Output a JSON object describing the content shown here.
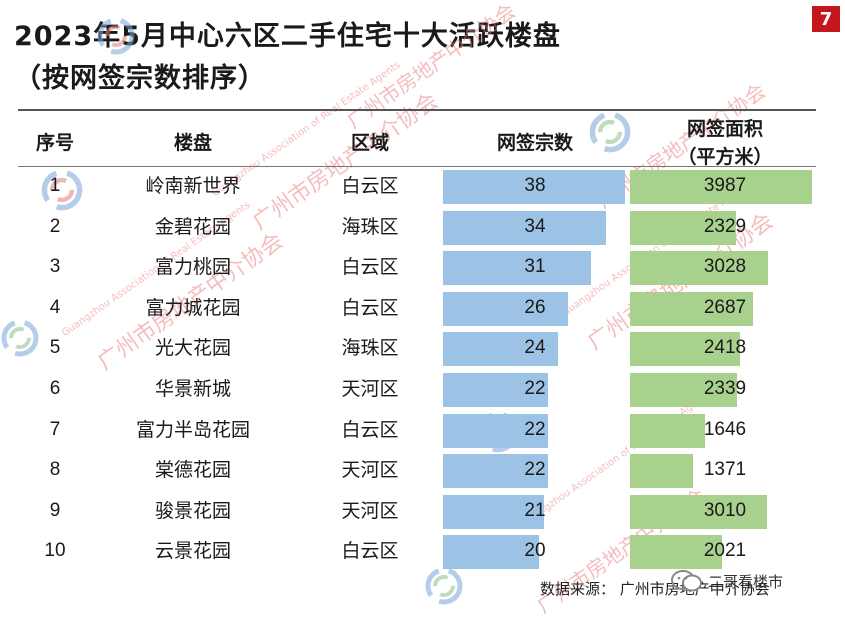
{
  "page": {
    "title_line1": "2023年5月中心六区二手住宅十大活跃楼盘",
    "title_line2": "（按网签宗数排序）",
    "page_number": "7",
    "source": "数据来源：  广州市房地产中介协会",
    "watermark_cn": "广州市房地产中介协会",
    "watermark_en": "Guangzhou Association of Real Estate Agents",
    "brand": "二哥看楼市"
  },
  "chart_data": {
    "type": "table",
    "headers": {
      "rank": "序号",
      "project": "楼盘",
      "district": "区域",
      "deals": "网签宗数",
      "area_line1": "网签面积",
      "area_line2": "（平方米）"
    },
    "rows": [
      {
        "rank": "1",
        "project": "岭南新世界",
        "district": "白云区",
        "deals": 38,
        "area": 3987
      },
      {
        "rank": "2",
        "project": "金碧花园",
        "district": "海珠区",
        "deals": 34,
        "area": 2329
      },
      {
        "rank": "3",
        "project": "富力桃园",
        "district": "白云区",
        "deals": 31,
        "area": 3028
      },
      {
        "rank": "4",
        "project": "富力城花园",
        "district": "白云区",
        "deals": 26,
        "area": 2687
      },
      {
        "rank": "5",
        "project": "光大花园",
        "district": "海珠区",
        "deals": 24,
        "area": 2418
      },
      {
        "rank": "6",
        "project": "华景新城",
        "district": "天河区",
        "deals": 22,
        "area": 2339
      },
      {
        "rank": "7",
        "project": "富力半岛花园",
        "district": "白云区",
        "deals": 22,
        "area": 1646
      },
      {
        "rank": "8",
        "project": "棠德花园",
        "district": "天河区",
        "deals": 22,
        "area": 1371
      },
      {
        "rank": "9",
        "project": "骏景花园",
        "district": "天河区",
        "deals": 21,
        "area": 3010
      },
      {
        "rank": "10",
        "project": "云景花园",
        "district": "白云区",
        "deals": 20,
        "area": 2021
      }
    ],
    "deals_bar_color": "#9cc3e6",
    "area_bar_color": "#a9d18e"
  }
}
